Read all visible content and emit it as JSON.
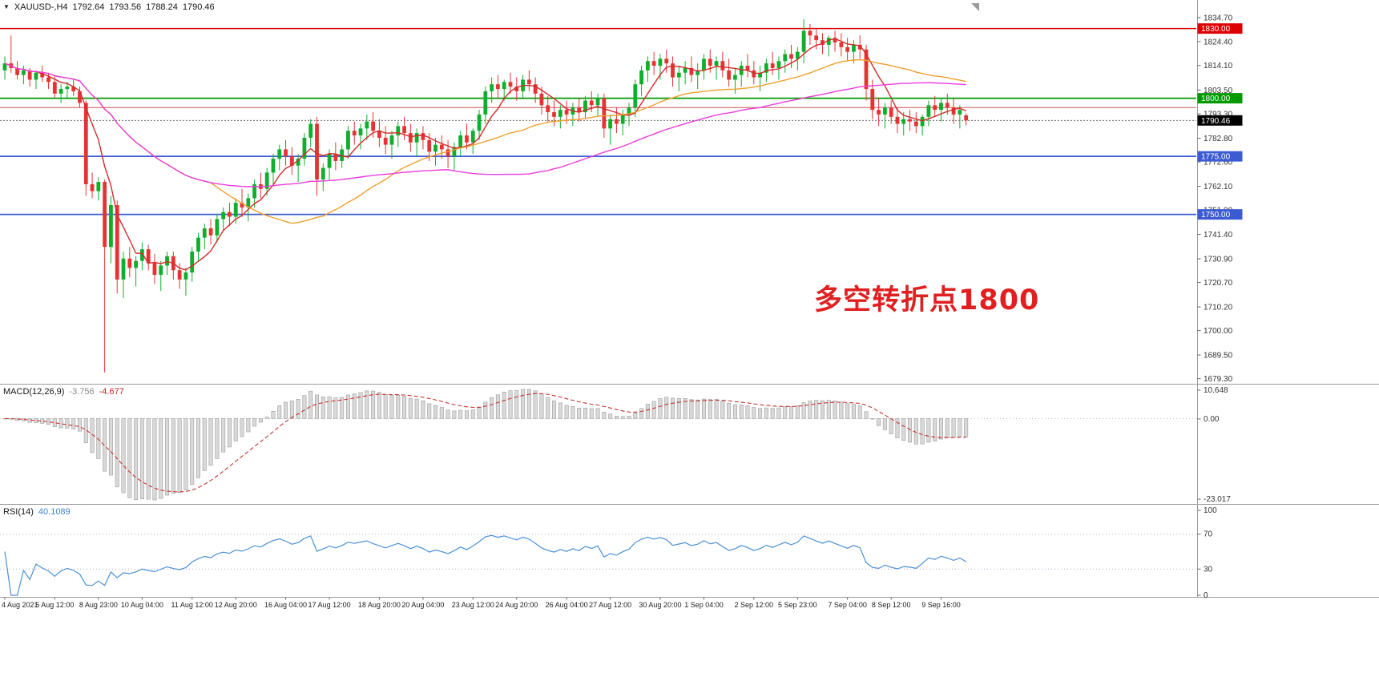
{
  "header": {
    "symbol_tf": "XAUUSD-,H4",
    "open": "1792.64",
    "high": "1793.56",
    "low": "1788.24",
    "close": "1790.46"
  },
  "macd_panel": {
    "label": "MACD(12,26,9)",
    "value": "-3.756",
    "signal_value": "-4.677",
    "fast": 12,
    "slow": 26,
    "signal": 9,
    "ticks": {
      "max": "10.648",
      "zero": "0.00",
      "min": "-23.017"
    }
  },
  "rsi_panel": {
    "label": "RSI(14)",
    "value": "40.1089",
    "period": 14,
    "levels": [
      70,
      30
    ],
    "ticks": [
      "100",
      "70",
      "30",
      "0"
    ]
  },
  "axes": {
    "price_ticks": [
      "1834.70",
      "1824.40",
      "1814.10",
      "1803.50",
      "1793.30",
      "1782.80",
      "1772.60",
      "1762.10",
      "1751.90",
      "1741.40",
      "1730.90",
      "1720.70",
      "1710.20",
      "1700.00",
      "1689.50",
      "1679.30"
    ],
    "time_labels": [
      {
        "t": "4 Aug 2021",
        "b": 0
      },
      {
        "t": "5 Aug 12:00",
        "b": 8
      },
      {
        "t": "8 Aug 23:00",
        "b": 15
      },
      {
        "t": "10 Aug 04:00",
        "b": 22
      },
      {
        "t": "11 Aug 12:00",
        "b": 30
      },
      {
        "t": "12 Aug 20:00",
        "b": 37
      },
      {
        "t": "16 Aug 04:00",
        "b": 45
      },
      {
        "t": "17 Aug 12:00",
        "b": 52
      },
      {
        "t": "18 Aug 20:00",
        "b": 60
      },
      {
        "t": "20 Aug 04:00",
        "b": 67
      },
      {
        "t": "23 Aug 12:00",
        "b": 75
      },
      {
        "t": "24 Aug 20:00",
        "b": 82
      },
      {
        "t": "26 Aug 04:00",
        "b": 90
      },
      {
        "t": "27 Aug 12:00",
        "b": 97
      },
      {
        "t": "30 Aug 20:00",
        "b": 105
      },
      {
        "t": "1 Sep 04:00",
        "b": 112
      },
      {
        "t": "2 Sep 12:00",
        "b": 120
      },
      {
        "t": "5 Sep 23:00",
        "b": 127
      },
      {
        "t": "7 Sep 04:00",
        "b": 135
      },
      {
        "t": "8 Sep 12:00",
        "b": 142
      },
      {
        "t": "9 Sep 16:00",
        "b": 150
      }
    ]
  },
  "overlays": {
    "hlines": [
      {
        "price": 1830.0,
        "label": "1830.00",
        "color": "#dd0000",
        "width": 1.6
      },
      {
        "price": 1800.0,
        "label": "1800.00",
        "color": "#009a00",
        "width": 1.8
      },
      {
        "price": 1796.0,
        "label": null,
        "color": "#cc5555",
        "width": 1.0
      },
      {
        "price": 1775.0,
        "label": "1775.00",
        "color": "#3c5bd2",
        "width": 1.8
      },
      {
        "price": 1750.0,
        "label": "1750.00",
        "color": "#3c5bd2",
        "width": 1.8
      }
    ],
    "current_price": {
      "value": 1790.46,
      "label": "1790.46",
      "color": "#000000"
    },
    "annotation": {
      "text": "多空转折点1800",
      "color": "#e02020"
    },
    "moving_averages": [
      {
        "period": 6,
        "color": "#d22a2a"
      },
      {
        "period": 34,
        "color": "#efa02d"
      },
      {
        "period": 72,
        "color": "#ea3cdc"
      }
    ],
    "candle_up_color": "#0fae2c",
    "candle_down_color": "#e53333"
  },
  "chart_data": {
    "type": "candlestick",
    "title": "XAUUSD- H4 candlestick chart with MACD(12,26,9) and RSI(14)",
    "symbol": "XAUUSD-",
    "timeframe": "H4",
    "y_range": [
      1679.3,
      1834.7
    ],
    "levels": [
      1830.0,
      1800.0,
      1775.0,
      1750.0
    ],
    "indicators": {
      "macd": {
        "fast": 12,
        "slow": 26,
        "signal": 9,
        "current": "-3.756",
        "signal_current": "-4.677",
        "range": [
          -23.017,
          10.648
        ]
      },
      "rsi": {
        "period": 14,
        "current": "40.1089",
        "range": [
          0,
          100
        ],
        "levels": [
          70,
          30
        ]
      }
    },
    "ohlc": [
      [
        1812,
        1818,
        1808,
        1815
      ],
      [
        1815,
        1827,
        1811,
        1813
      ],
      [
        1813,
        1816,
        1808,
        1810
      ],
      [
        1810,
        1814,
        1806,
        1812
      ],
      [
        1812,
        1813,
        1805,
        1808
      ],
      [
        1808,
        1812,
        1804,
        1811
      ],
      [
        1811,
        1814,
        1807,
        1809
      ],
      [
        1809,
        1811,
        1804,
        1807
      ],
      [
        1807,
        1810,
        1800,
        1802
      ],
      [
        1802,
        1806,
        1798,
        1804
      ],
      [
        1804,
        1807,
        1800,
        1805
      ],
      [
        1805,
        1808,
        1801,
        1803
      ],
      [
        1803,
        1805,
        1796,
        1798
      ],
      [
        1798,
        1799,
        1758,
        1763
      ],
      [
        1763,
        1768,
        1757,
        1760
      ],
      [
        1760,
        1766,
        1756,
        1764
      ],
      [
        1764,
        1765,
        1682,
        1736
      ],
      [
        1736,
        1758,
        1729,
        1754
      ],
      [
        1754,
        1756,
        1716,
        1722
      ],
      [
        1722,
        1734,
        1714,
        1731
      ],
      [
        1731,
        1736,
        1723,
        1727
      ],
      [
        1727,
        1732,
        1719,
        1730
      ],
      [
        1730,
        1738,
        1726,
        1735
      ],
      [
        1735,
        1737,
        1726,
        1729
      ],
      [
        1729,
        1733,
        1720,
        1724
      ],
      [
        1724,
        1730,
        1717,
        1728
      ],
      [
        1728,
        1734,
        1724,
        1732
      ],
      [
        1732,
        1734,
        1722,
        1726
      ],
      [
        1726,
        1729,
        1718,
        1722
      ],
      [
        1722,
        1727,
        1715,
        1725
      ],
      [
        1725,
        1736,
        1721,
        1734
      ],
      [
        1734,
        1742,
        1730,
        1740
      ],
      [
        1740,
        1746,
        1735,
        1744
      ],
      [
        1744,
        1748,
        1737,
        1741
      ],
      [
        1741,
        1750,
        1738,
        1748
      ],
      [
        1748,
        1753,
        1743,
        1751
      ],
      [
        1751,
        1755,
        1745,
        1749
      ],
      [
        1749,
        1757,
        1746,
        1755
      ],
      [
        1755,
        1761,
        1749,
        1753
      ],
      [
        1753,
        1759,
        1747,
        1757
      ],
      [
        1757,
        1765,
        1753,
        1763
      ],
      [
        1763,
        1768,
        1757,
        1761
      ],
      [
        1761,
        1770,
        1758,
        1768
      ],
      [
        1768,
        1776,
        1763,
        1774
      ],
      [
        1774,
        1780,
        1769,
        1778
      ],
      [
        1778,
        1782,
        1771,
        1775
      ],
      [
        1775,
        1779,
        1767,
        1771
      ],
      [
        1771,
        1776,
        1764,
        1774
      ],
      [
        1774,
        1785,
        1771,
        1783
      ],
      [
        1783,
        1791,
        1779,
        1789
      ],
      [
        1789,
        1792,
        1758,
        1765
      ],
      [
        1765,
        1772,
        1760,
        1770
      ],
      [
        1770,
        1778,
        1765,
        1776
      ],
      [
        1776,
        1781,
        1769,
        1773
      ],
      [
        1773,
        1780,
        1770,
        1778
      ],
      [
        1778,
        1788,
        1774,
        1786
      ],
      [
        1786,
        1790,
        1780,
        1784
      ],
      [
        1784,
        1789,
        1778,
        1787
      ],
      [
        1787,
        1793,
        1782,
        1790
      ],
      [
        1790,
        1794,
        1783,
        1786
      ],
      [
        1786,
        1791,
        1779,
        1783
      ],
      [
        1783,
        1788,
        1776,
        1780
      ],
      [
        1780,
        1786,
        1774,
        1784
      ],
      [
        1784,
        1790,
        1779,
        1788
      ],
      [
        1788,
        1792,
        1782,
        1785
      ],
      [
        1785,
        1789,
        1777,
        1781
      ],
      [
        1781,
        1787,
        1775,
        1785
      ],
      [
        1785,
        1788,
        1778,
        1782
      ],
      [
        1782,
        1785,
        1773,
        1777
      ],
      [
        1777,
        1783,
        1771,
        1780
      ],
      [
        1780,
        1784,
        1774,
        1778
      ],
      [
        1778,
        1782,
        1770,
        1775
      ],
      [
        1775,
        1781,
        1769,
        1779
      ],
      [
        1779,
        1786,
        1775,
        1784
      ],
      [
        1784,
        1789,
        1778,
        1781
      ],
      [
        1781,
        1787,
        1776,
        1786
      ],
      [
        1786,
        1795,
        1782,
        1793
      ],
      [
        1793,
        1805,
        1789,
        1803
      ],
      [
        1803,
        1809,
        1798,
        1806
      ],
      [
        1806,
        1810,
        1800,
        1804
      ],
      [
        1804,
        1808,
        1799,
        1807
      ],
      [
        1807,
        1811,
        1802,
        1805
      ],
      [
        1805,
        1809,
        1799,
        1803
      ],
      [
        1803,
        1810,
        1800,
        1808
      ],
      [
        1808,
        1812,
        1803,
        1806
      ],
      [
        1806,
        1809,
        1798,
        1802
      ],
      [
        1802,
        1805,
        1793,
        1797
      ],
      [
        1797,
        1801,
        1790,
        1794
      ],
      [
        1794,
        1799,
        1788,
        1792
      ],
      [
        1792,
        1797,
        1787,
        1795
      ],
      [
        1795,
        1799,
        1789,
        1793
      ],
      [
        1793,
        1798,
        1788,
        1796
      ],
      [
        1796,
        1800,
        1790,
        1794
      ],
      [
        1794,
        1801,
        1791,
        1799
      ],
      [
        1799,
        1803,
        1794,
        1797
      ],
      [
        1797,
        1802,
        1792,
        1800
      ],
      [
        1800,
        1802,
        1783,
        1787
      ],
      [
        1787,
        1793,
        1780,
        1791
      ],
      [
        1791,
        1796,
        1785,
        1789
      ],
      [
        1789,
        1795,
        1784,
        1793
      ],
      [
        1793,
        1798,
        1788,
        1796
      ],
      [
        1796,
        1808,
        1792,
        1806
      ],
      [
        1806,
        1814,
        1801,
        1812
      ],
      [
        1812,
        1818,
        1807,
        1816
      ],
      [
        1816,
        1820,
        1810,
        1814
      ],
      [
        1814,
        1819,
        1808,
        1817
      ],
      [
        1817,
        1821,
        1811,
        1815
      ],
      [
        1815,
        1818,
        1805,
        1809
      ],
      [
        1809,
        1814,
        1803,
        1811
      ],
      [
        1811,
        1816,
        1806,
        1813
      ],
      [
        1813,
        1818,
        1807,
        1810
      ],
      [
        1810,
        1815,
        1804,
        1812
      ],
      [
        1812,
        1819,
        1808,
        1817
      ],
      [
        1817,
        1821,
        1811,
        1814
      ],
      [
        1814,
        1818,
        1808,
        1816
      ],
      [
        1816,
        1820,
        1809,
        1812
      ],
      [
        1812,
        1817,
        1805,
        1808
      ],
      [
        1808,
        1813,
        1802,
        1810
      ],
      [
        1810,
        1816,
        1805,
        1814
      ],
      [
        1814,
        1819,
        1809,
        1812
      ],
      [
        1812,
        1816,
        1806,
        1809
      ],
      [
        1809,
        1814,
        1803,
        1811
      ],
      [
        1811,
        1817,
        1807,
        1815
      ],
      [
        1815,
        1820,
        1810,
        1813
      ],
      [
        1813,
        1818,
        1808,
        1816
      ],
      [
        1816,
        1821,
        1811,
        1819
      ],
      [
        1819,
        1823,
        1813,
        1817
      ],
      [
        1817,
        1822,
        1812,
        1820
      ],
      [
        1820,
        1834,
        1815,
        1829
      ],
      [
        1829,
        1832,
        1823,
        1827
      ],
      [
        1827,
        1830,
        1821,
        1825
      ],
      [
        1825,
        1828,
        1819,
        1823
      ],
      [
        1823,
        1827,
        1818,
        1826
      ],
      [
        1826,
        1829,
        1820,
        1824
      ],
      [
        1824,
        1828,
        1818,
        1822
      ],
      [
        1822,
        1826,
        1816,
        1820
      ],
      [
        1820,
        1825,
        1815,
        1823
      ],
      [
        1823,
        1827,
        1817,
        1821
      ],
      [
        1821,
        1823,
        1799,
        1804
      ],
      [
        1804,
        1808,
        1791,
        1795
      ],
      [
        1795,
        1800,
        1788,
        1793
      ],
      [
        1793,
        1798,
        1787,
        1796
      ],
      [
        1796,
        1799,
        1789,
        1792
      ],
      [
        1792,
        1796,
        1785,
        1789
      ],
      [
        1789,
        1794,
        1784,
        1791
      ],
      [
        1791,
        1795,
        1786,
        1790
      ],
      [
        1790,
        1794,
        1785,
        1788
      ],
      [
        1788,
        1793,
        1784,
        1792
      ],
      [
        1792,
        1799,
        1788,
        1797
      ],
      [
        1797,
        1801,
        1792,
        1795
      ],
      [
        1795,
        1800,
        1790,
        1798
      ],
      [
        1798,
        1802,
        1793,
        1796
      ],
      [
        1796,
        1800,
        1789,
        1793
      ],
      [
        1793,
        1797,
        1787,
        1795
      ],
      [
        1792.64,
        1793.56,
        1788.24,
        1790.46
      ]
    ]
  }
}
